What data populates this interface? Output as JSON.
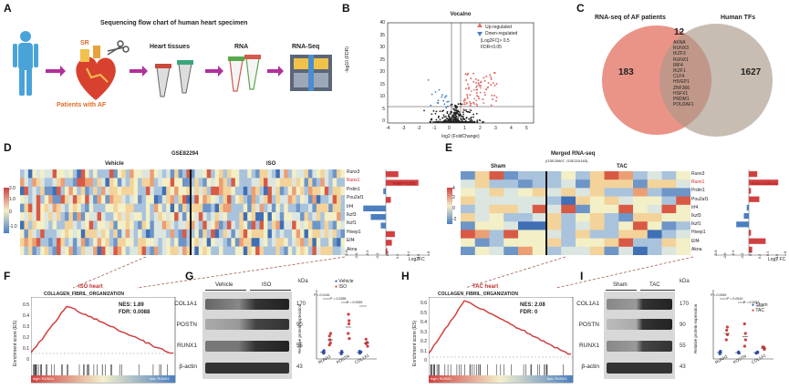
{
  "panel_labels": {
    "a": "A",
    "b": "B",
    "c": "C",
    "d": "D",
    "e": "E",
    "f": "F",
    "g": "G",
    "h": "H",
    "i": "I"
  },
  "panelA": {
    "title": "Sequencing flow chart of human heart specimen",
    "sr": "SR",
    "patients": "Patients with AF",
    "tissues": "Heart tissues",
    "rna": "RNA",
    "rnaseq": "RNA-Seq"
  },
  "panelB": {
    "title": "Vocalno",
    "legend_up": "Up-regulated",
    "legend_down": "Down-regulated",
    "legend_fc": "|Log2FC|> 0.5",
    "legend_fdr": "FDR<0.05",
    "xlabel": "log2 (FoldChange)",
    "ylabel": "-log10 (FDR)",
    "xticks": [
      "-4",
      "-3",
      "-2",
      "-1",
      "0",
      "1",
      "2",
      "3",
      "4",
      "5"
    ],
    "yticks": [
      "0",
      "5",
      "10",
      "15",
      "20",
      "25",
      "30",
      "35",
      "40"
    ]
  },
  "panelC": {
    "left_title": "RNA-seq of AF patients",
    "right_title": "Human TFs",
    "left_count": "183",
    "overlap_count": "12",
    "right_count": "1627",
    "genes": [
      "AKNA",
      "RUNX3",
      "IKZF3",
      "RUNX1",
      "IRF4",
      "IKZF1",
      "CLF4",
      "HIVEP1",
      "ZNF366",
      "HSFX1",
      "PRDM1",
      "POU2AF1"
    ]
  },
  "panelD": {
    "title": "GSE82294",
    "group1": "Vehicle",
    "group2": "ISO",
    "genes": [
      "Runx3",
      "Runx1",
      "Prdm1",
      "Pou2af1",
      "Irf4",
      "Ikzf3",
      "Ikzf1",
      "Hivep1",
      "Elf4",
      "Akna"
    ],
    "highlight": "Runx1",
    "fdr_note": "FDR= 0.034",
    "scale": [
      "2.0",
      "1.0",
      "0",
      "-1.0"
    ],
    "bar_xlabel": "Log2FC",
    "bar_ticks": [
      "-0.8",
      "-0.6",
      "-0.4",
      "-0.2",
      "0.0",
      "0.2",
      "0.4",
      "0.6",
      "0.8"
    ]
  },
  "panelE": {
    "title": "Merged RNA-seq",
    "subtitle": "(GSE25807, GSE215183)",
    "group1": "Sham",
    "group2": "TAC",
    "genes": [
      "Runx3",
      "Runx1",
      "Prdm1",
      "Pou2af1",
      "Irf4",
      "Ikzf3",
      "Ikzf1",
      "Hivep1",
      "Elf4",
      "Akna"
    ],
    "highlight": "Runx1",
    "fdr_note": "FDR= 4.43E-04",
    "scale": [
      "4",
      "2",
      "0",
      "-2"
    ],
    "bar_xlabel": "Log2 FC",
    "bar_ticks": [
      "-0.8",
      "-0.6",
      "-0.4",
      "-0.2",
      "0.0",
      "0.2",
      "0.4",
      "0.6",
      "0.8"
    ]
  },
  "panelF": {
    "heading": "ISO heart",
    "pathway": "COLLAGEN_FIBRIL_ORGANIZATION",
    "nes": "NES: 1.89",
    "fdr": "FDR: 0.0088",
    "ylabel": "Enrichment score (ES)",
    "yticks": [
      "0.5",
      "0.4",
      "0.3",
      "0.2",
      "0.1",
      "0"
    ],
    "high": "high: RUNX1",
    "low": "low: RUNX1"
  },
  "panelG": {
    "group1": "Vehicle",
    "group2": "ISO",
    "kda_label": "kDa",
    "rows": [
      {
        "name": "COL1A1",
        "kda": "170"
      },
      {
        "name": "POSTN",
        "kda": "90"
      },
      {
        "name": "RUNX1",
        "kda": "55"
      },
      {
        "name": "β-actin",
        "kda": "43"
      }
    ],
    "legend": [
      "Vehicle",
      "ISO"
    ],
    "ylabel": "Relative protein expression",
    "categories": [
      "RUNX1",
      "POSTN",
      "COL1A1"
    ],
    "pvalues": [
      "P = 0.0145",
      "P = 0.0358",
      "P = 0.0059"
    ],
    "yticks": [
      "0",
      "2",
      "4",
      "6",
      "8",
      "10"
    ]
  },
  "panelH": {
    "heading": "TAC heart",
    "pathway": "COLLAGEN_FIBRIL_ORGANIZATION",
    "nes": "NES: 2.08",
    "fdr": "FDR: 0",
    "ylabel": "Enrichment score (ES)",
    "yticks": [
      "0.6",
      "0.5",
      "0.4",
      "0.3",
      "0.2",
      "0.1",
      "0"
    ],
    "high": "high: RUNX1",
    "low": "low: RUNX1"
  },
  "panelI": {
    "group1": "Sham",
    "group2": "TAC",
    "kda_label": "kDa",
    "rows": [
      {
        "name": "COL1A1",
        "kda": "170"
      },
      {
        "name": "POSTN",
        "kda": "90"
      },
      {
        "name": "RUNX1",
        "kda": "55"
      },
      {
        "name": "β-actin",
        "kda": "43"
      }
    ],
    "legend": [
      "Sham",
      "TAC"
    ],
    "ylabel": "Relative protein expression",
    "categories": [
      "RUNX1",
      "POSTN",
      "COL1A1"
    ],
    "pvalues": [
      "P = 0.0069",
      "P = 0.0510",
      "P = 0.0053"
    ],
    "yticks": [
      "0",
      "2",
      "4",
      "6",
      "8"
    ]
  },
  "colors": {
    "up": "#e07070",
    "down": "#4a7fc0",
    "hot": "#d04040",
    "cold": "#4a7fc0",
    "venn_left": "#e8877a",
    "venn_right": "#a99a88",
    "arrow": "#b0309a"
  }
}
